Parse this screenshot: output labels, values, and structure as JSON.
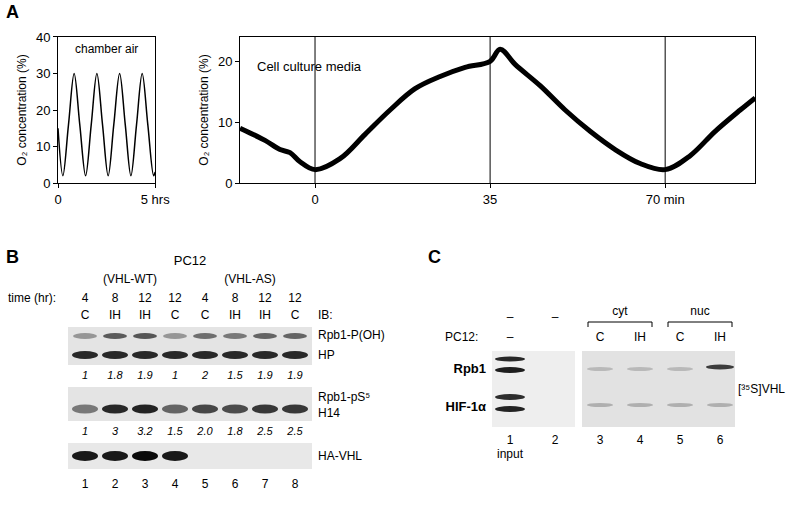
{
  "panel_labels": [
    "A",
    "B",
    "C"
  ],
  "chart_data": [
    {
      "type": "line",
      "annotation": "chamber air",
      "y_label": "O₂ concentration (%)",
      "x": [
        0,
        0.25,
        0.54,
        0.83,
        1.12,
        1.42,
        1.71,
        2.0,
        2.29,
        2.58,
        2.87,
        3.17,
        3.46,
        3.75,
        4.04,
        4.33,
        4.62,
        4.92,
        5.0
      ],
      "values": [
        15,
        2,
        16,
        30,
        16,
        2,
        16,
        30,
        16,
        2,
        16,
        30,
        16,
        2,
        16,
        30,
        16,
        2,
        3
      ],
      "color": "#000000",
      "line_style": "solid",
      "xlim": [
        0,
        5
      ],
      "xticks": [
        0,
        {
          "value": 5,
          "label": "5 hrs"
        }
      ],
      "ylim": [
        0,
        40
      ],
      "yticks": [
        0,
        10,
        20,
        30,
        40
      ],
      "grid": false
    },
    {
      "type": "line",
      "annotation": "Cell culture media",
      "y_label": "O₂ concentration (%)",
      "x": [
        -15,
        -10,
        -7,
        -5,
        -3,
        0,
        5,
        10,
        15,
        20,
        25,
        30,
        35,
        37,
        40,
        45,
        50,
        55,
        60,
        65,
        70,
        75,
        80,
        85,
        88
      ],
      "values": [
        9,
        7,
        5.5,
        5,
        3.5,
        2.2,
        4,
        8,
        12,
        15.5,
        17.5,
        19,
        20,
        22,
        19.5,
        16,
        12,
        8.5,
        5.5,
        3.2,
        2.2,
        4.5,
        8.5,
        12,
        14
      ],
      "color": "#000000",
      "line_style": "solid",
      "xlim": [
        -15,
        88
      ],
      "xticks": [
        0,
        35,
        {
          "value": 70,
          "label": "70 min"
        }
      ],
      "ylim": [
        0,
        24
      ],
      "yticks": [
        0,
        10,
        20
      ],
      "vlines": [
        0,
        35,
        70
      ],
      "grid": false
    }
  ],
  "blot_B": {
    "title": "PC12",
    "groups": [
      "(VHL-WT)",
      "(VHL-AS)"
    ],
    "time_label": "time (hr):",
    "times": [
      "4",
      "8",
      "12",
      "12",
      "4",
      "8",
      "12",
      "12"
    ],
    "conditions": [
      "C",
      "IH",
      "IH",
      "C",
      "C",
      "IH",
      "IH",
      "C"
    ],
    "ib_label": "IB:",
    "rows": [
      {
        "label": "Rpb1-P(OH)",
        "antibody": "HP",
        "quant": [
          "1",
          "1.8",
          "1.9",
          "1",
          "2",
          "1.5",
          "1.9",
          "1.9"
        ]
      },
      {
        "label": "Rpb1-pS⁵",
        "antibody": "H14",
        "quant": [
          "1",
          "3",
          "3.2",
          "1.5",
          "2.0",
          "1.8",
          "2.5",
          "2.5"
        ]
      },
      {
        "label": "HA-VHL"
      }
    ],
    "lanes": [
      "1",
      "2",
      "3",
      "4",
      "5",
      "6",
      "7",
      "8"
    ]
  },
  "blot_C": {
    "cell_label": "PC12:",
    "row1": [
      "–",
      "–"
    ],
    "fractions": [
      "cyt",
      "nuc"
    ],
    "treatment": [
      "–",
      null,
      "C",
      "IH",
      "C",
      "IH"
    ],
    "rows": [
      "Rpb1",
      "HIF-1α"
    ],
    "probe": "[³⁵S]VHL",
    "lanes": [
      "1",
      "2",
      "3",
      "4",
      "5",
      "6"
    ],
    "input_label": "input"
  }
}
